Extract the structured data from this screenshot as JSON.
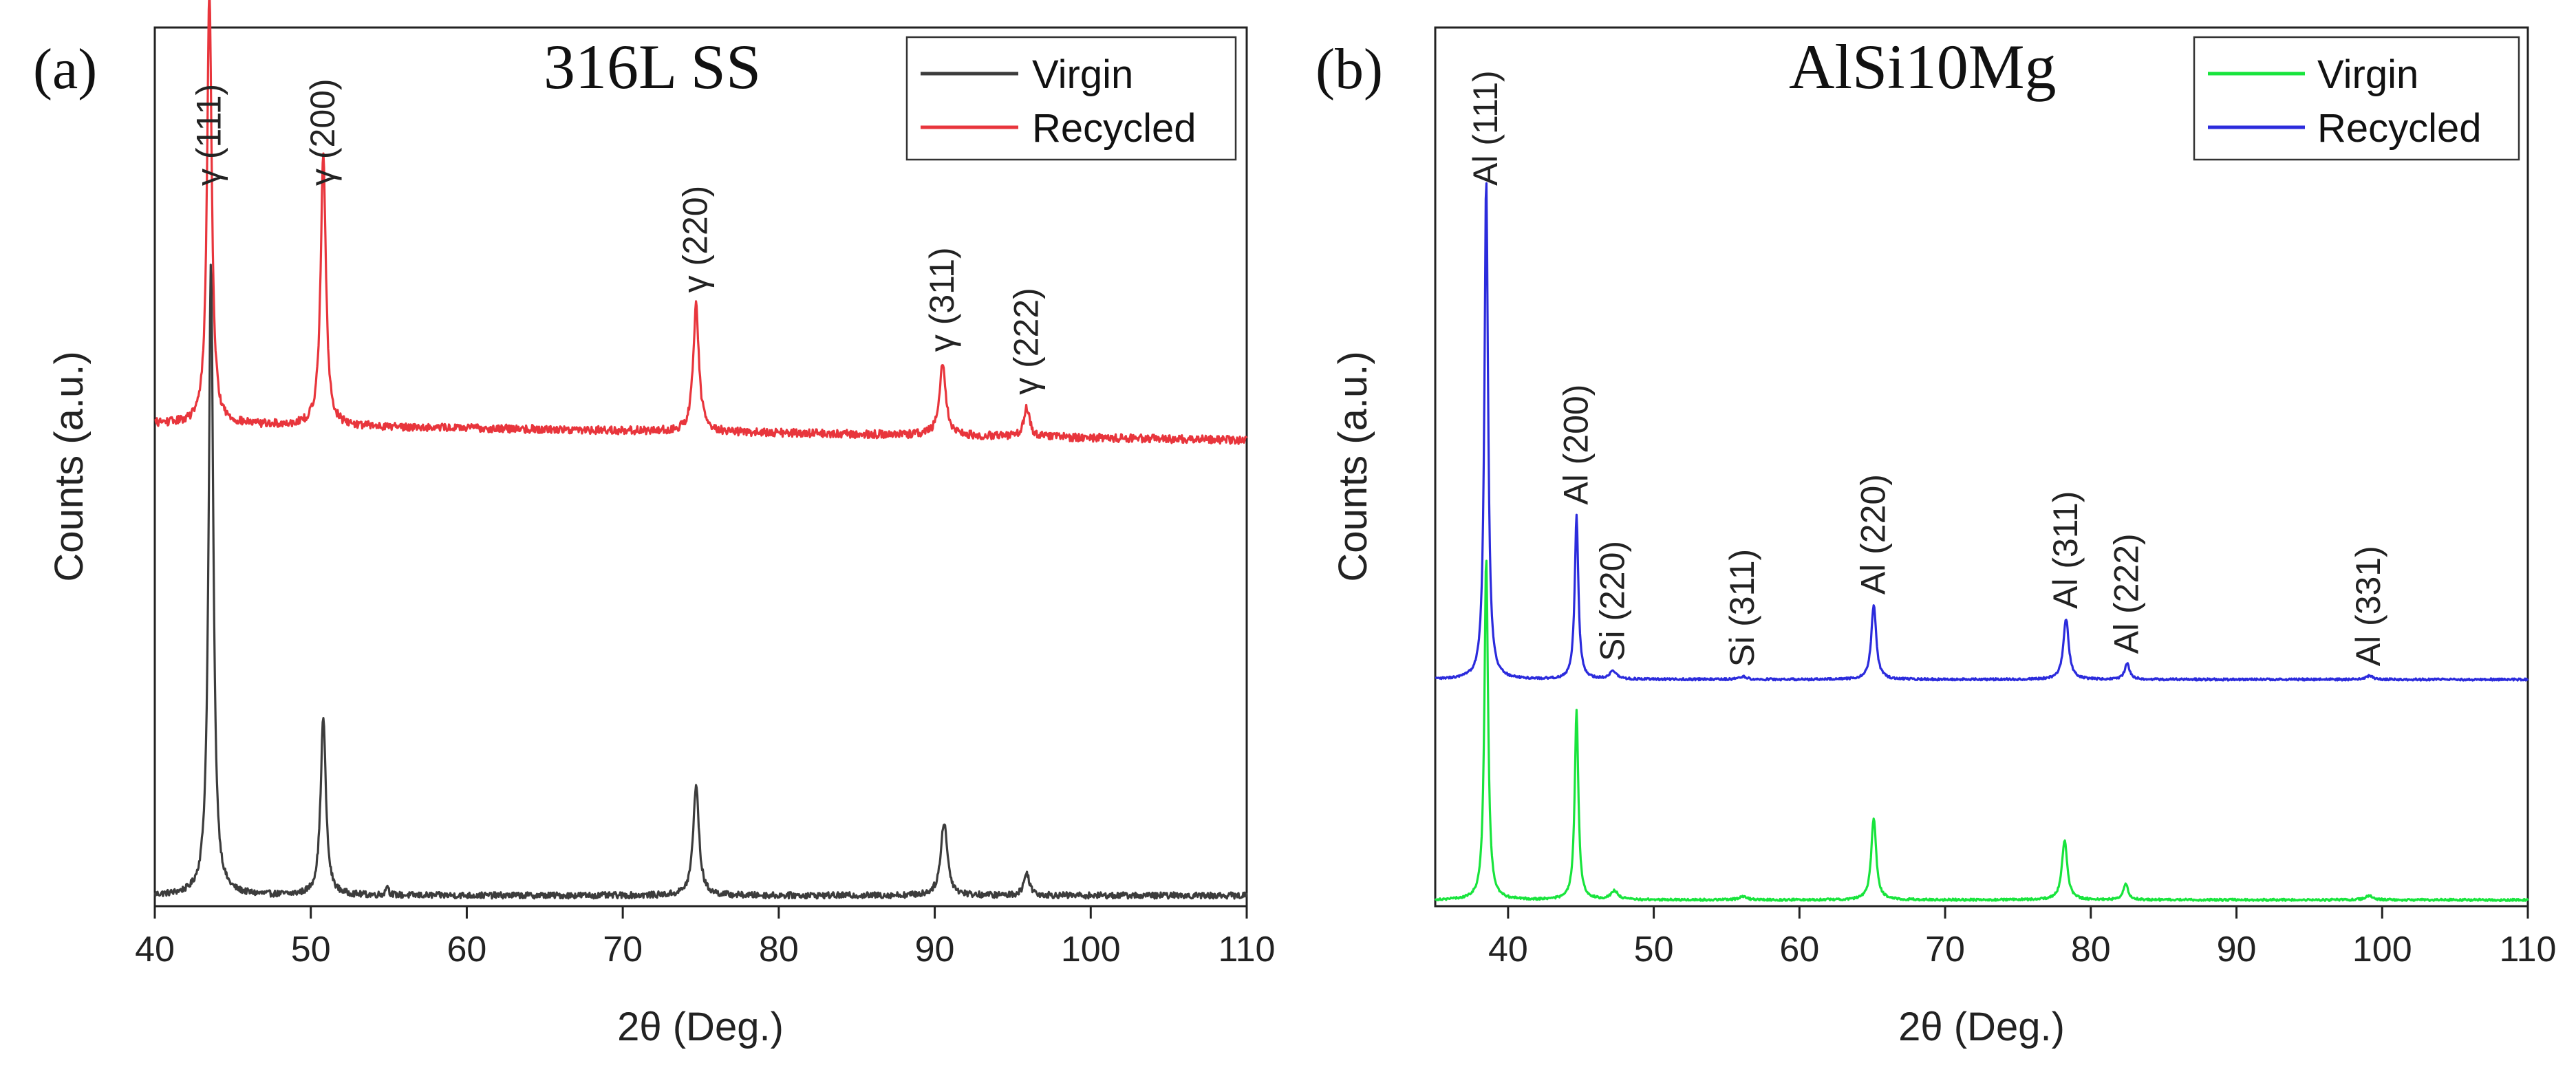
{
  "figure": {
    "panels": [
      {
        "label": "(a)",
        "title": "316L SS",
        "xlabel": "2θ (Deg.)",
        "ylabel": "Counts (a.u.)"
      },
      {
        "label": "(b)",
        "title": "AlSi10Mg",
        "xlabel": "2θ (Deg.)",
        "ylabel": "Counts (a.u.)"
      }
    ]
  },
  "chart_data": [
    {
      "type": "line",
      "title": "316L SS",
      "panel_label": "(a)",
      "xlabel": "2θ (Deg.)",
      "ylabel": "Counts (a.u.)",
      "xlim": [
        40,
        110
      ],
      "ylim": [
        0,
        100
      ],
      "x_ticks": [
        40,
        50,
        60,
        70,
        80,
        90,
        100,
        110
      ],
      "yticks_visible": false,
      "grid": false,
      "legend_position": "top-right",
      "series": [
        {
          "name": "Virgin",
          "color": "#3c3c3c",
          "baseline": 0.5,
          "noise": 0.35,
          "peaks": [
            {
              "x": 43.6,
              "height": 71,
              "width": 0.18
            },
            {
              "x": 50.8,
              "height": 20,
              "width": 0.2
            },
            {
              "x": 74.7,
              "height": 12.5,
              "width": 0.22
            },
            {
              "x": 90.6,
              "height": 8.3,
              "width": 0.25
            },
            {
              "x": 95.9,
              "height": 2.5,
              "width": 0.22
            },
            {
              "x": 54.9,
              "height": 1.2,
              "width": 0.1
            }
          ]
        },
        {
          "name": "Recycled",
          "color": "#e8353c",
          "baseline": 53.5,
          "baseline_end": 51.6,
          "noise": 0.45,
          "peaks": [
            {
              "x": 43.5,
              "height": 49,
              "width": 0.18
            },
            {
              "x": 50.8,
              "height": 30.5,
              "width": 0.2
            },
            {
              "x": 74.7,
              "height": 14.2,
              "width": 0.22
            },
            {
              "x": 90.5,
              "height": 8,
              "width": 0.25
            },
            {
              "x": 95.9,
              "height": 3.3,
              "width": 0.22
            }
          ]
        }
      ],
      "annotations": [
        {
          "text": "γ (111)",
          "x": 43.5
        },
        {
          "text": "γ (200)",
          "x": 50.8
        },
        {
          "text": "γ (220)",
          "x": 74.7
        },
        {
          "text": "γ (311)",
          "x": 90.5
        },
        {
          "text": "γ (222)",
          "x": 95.9
        }
      ]
    },
    {
      "type": "line",
      "title": "AlSi10Mg",
      "panel_label": "(b)",
      "xlabel": "2θ (Deg.)",
      "ylabel": "Counts (a.u.)",
      "xlim": [
        35,
        110
      ],
      "ylim": [
        0,
        100
      ],
      "x_ticks": [
        40,
        50,
        60,
        70,
        80,
        90,
        100,
        110
      ],
      "yticks_visible": false,
      "grid": false,
      "legend_position": "top-right",
      "series": [
        {
          "name": "Virgin",
          "color": "#18e43c",
          "baseline": 0.4,
          "noise": 0.15,
          "peaks": [
            {
              "x": 38.5,
              "height": 48,
              "width": 0.15
            },
            {
              "x": 44.7,
              "height": 26.5,
              "width": 0.15
            },
            {
              "x": 47.3,
              "height": 1.2,
              "width": 0.3
            },
            {
              "x": 56.1,
              "height": 0.5,
              "width": 0.3
            },
            {
              "x": 65.1,
              "height": 11.5,
              "width": 0.2
            },
            {
              "x": 78.2,
              "height": 8.3,
              "width": 0.22
            },
            {
              "x": 82.4,
              "height": 2.2,
              "width": 0.2
            },
            {
              "x": 99.1,
              "height": 0.6,
              "width": 0.3
            }
          ]
        },
        {
          "name": "Recycled",
          "color": "#2b2bdc",
          "baseline": 31.2,
          "noise": 0.15,
          "peaks": [
            {
              "x": 38.5,
              "height": 70,
              "width": 0.15
            },
            {
              "x": 44.7,
              "height": 23,
              "width": 0.15
            },
            {
              "x": 47.2,
              "height": 1.1,
              "width": 0.3
            },
            {
              "x": 56.1,
              "height": 0.4,
              "width": 0.3
            },
            {
              "x": 65.1,
              "height": 10.5,
              "width": 0.2
            },
            {
              "x": 78.3,
              "height": 8.5,
              "width": 0.22
            },
            {
              "x": 82.5,
              "height": 2.2,
              "width": 0.2
            },
            {
              "x": 99.1,
              "height": 0.5,
              "width": 0.3
            }
          ]
        }
      ],
      "annotations": [
        {
          "text": "Al (111)",
          "x": 38.5
        },
        {
          "text": "Al (200)",
          "x": 44.7
        },
        {
          "text": "Si (220)",
          "x": 47.2
        },
        {
          "text": "Si (311)",
          "x": 56.1
        },
        {
          "text": "Al (220)",
          "x": 65.1
        },
        {
          "text": "Al (311)",
          "x": 78.3
        },
        {
          "text": "Al (222)",
          "x": 82.5
        },
        {
          "text": "Al (331)",
          "x": 99.1
        }
      ]
    }
  ]
}
